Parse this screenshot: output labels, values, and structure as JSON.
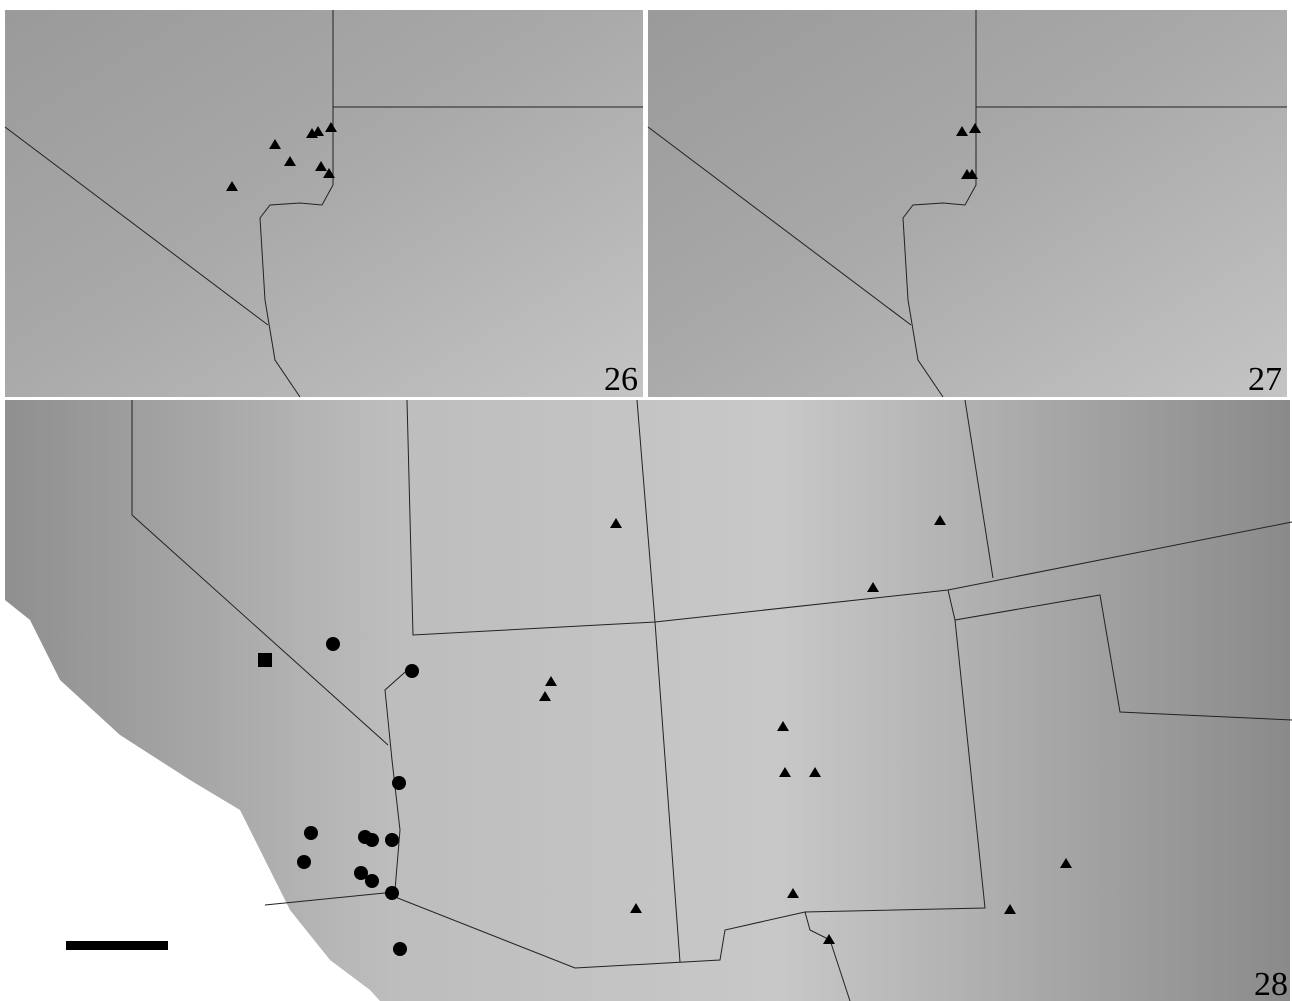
{
  "panels": [
    {
      "label": "26"
    },
    {
      "label": "27"
    },
    {
      "label": "28"
    }
  ]
}
